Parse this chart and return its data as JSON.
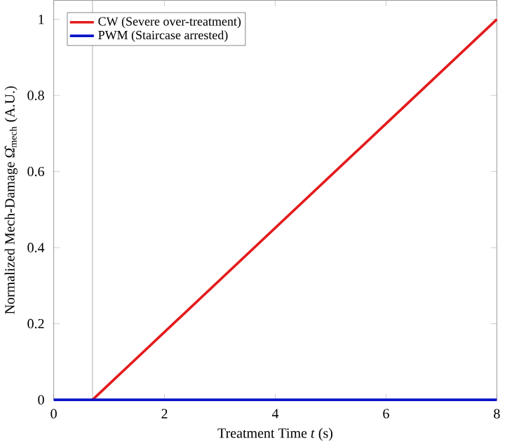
{
  "chart_data": {
    "type": "line",
    "xlabel": "Treatment Time *t* (s)",
    "ylabel": "Normalized Mech-Damage Ω̂$_{mech}$ (A.U.)",
    "series": [
      {
        "name": "CW (Severe over-treatment)",
        "color": "#e31a1c",
        "x": [
          0.7,
          8
        ],
        "values": [
          0,
          1
        ]
      },
      {
        "name": "PWM (Staircase arrested)",
        "color": "#0a14c8",
        "x": [
          0,
          8
        ],
        "values": [
          0,
          0
        ]
      }
    ],
    "xlim": [
      0,
      8
    ],
    "ylim": [
      0,
      1.05
    ],
    "xticks": [
      0,
      2,
      4,
      6,
      8
    ],
    "yticks": [
      0,
      0.2,
      0.4,
      0.6,
      0.8,
      1
    ],
    "ref_lines": [
      {
        "axis": "x",
        "value": 0.7,
        "color": "#b0b0b0"
      }
    ],
    "legend": "top left",
    "grid": false,
    "marker": "none",
    "line_style": "solid"
  }
}
